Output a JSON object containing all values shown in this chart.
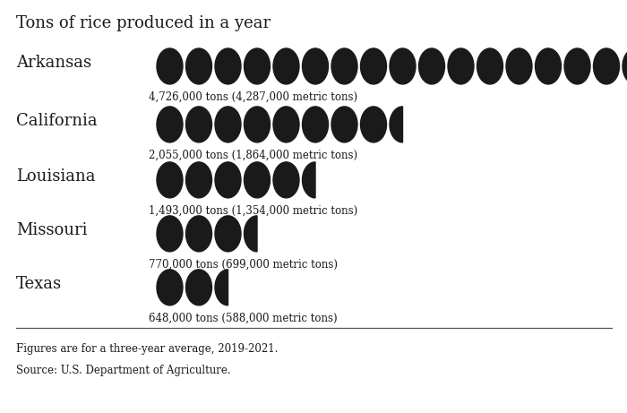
{
  "title": "Tons of rice produced in a year",
  "background_color": "#f4b8bc",
  "outer_background": "#ffffff",
  "circle_color": "#1a1a1a",
  "states": [
    "Arkansas",
    "California",
    "Louisiana",
    "Missouri",
    "Texas"
  ],
  "values": [
    4726000,
    2055000,
    1493000,
    770000,
    648000
  ],
  "labels": [
    "4,726,000 tons (4,287,000 metric tons)",
    "2,055,000 tons (1,864,000 metric tons)",
    "1,493,000 tons (1,354,000 metric tons)",
    "770,000 tons (699,000 metric tons)",
    "648,000 tons (588,000 metric tons)"
  ],
  "unit": 250000,
  "footnote1": "Figures are for a three-year average, 2019-2021.",
  "footnote2": "Source: U.S. Department of Agriculture."
}
